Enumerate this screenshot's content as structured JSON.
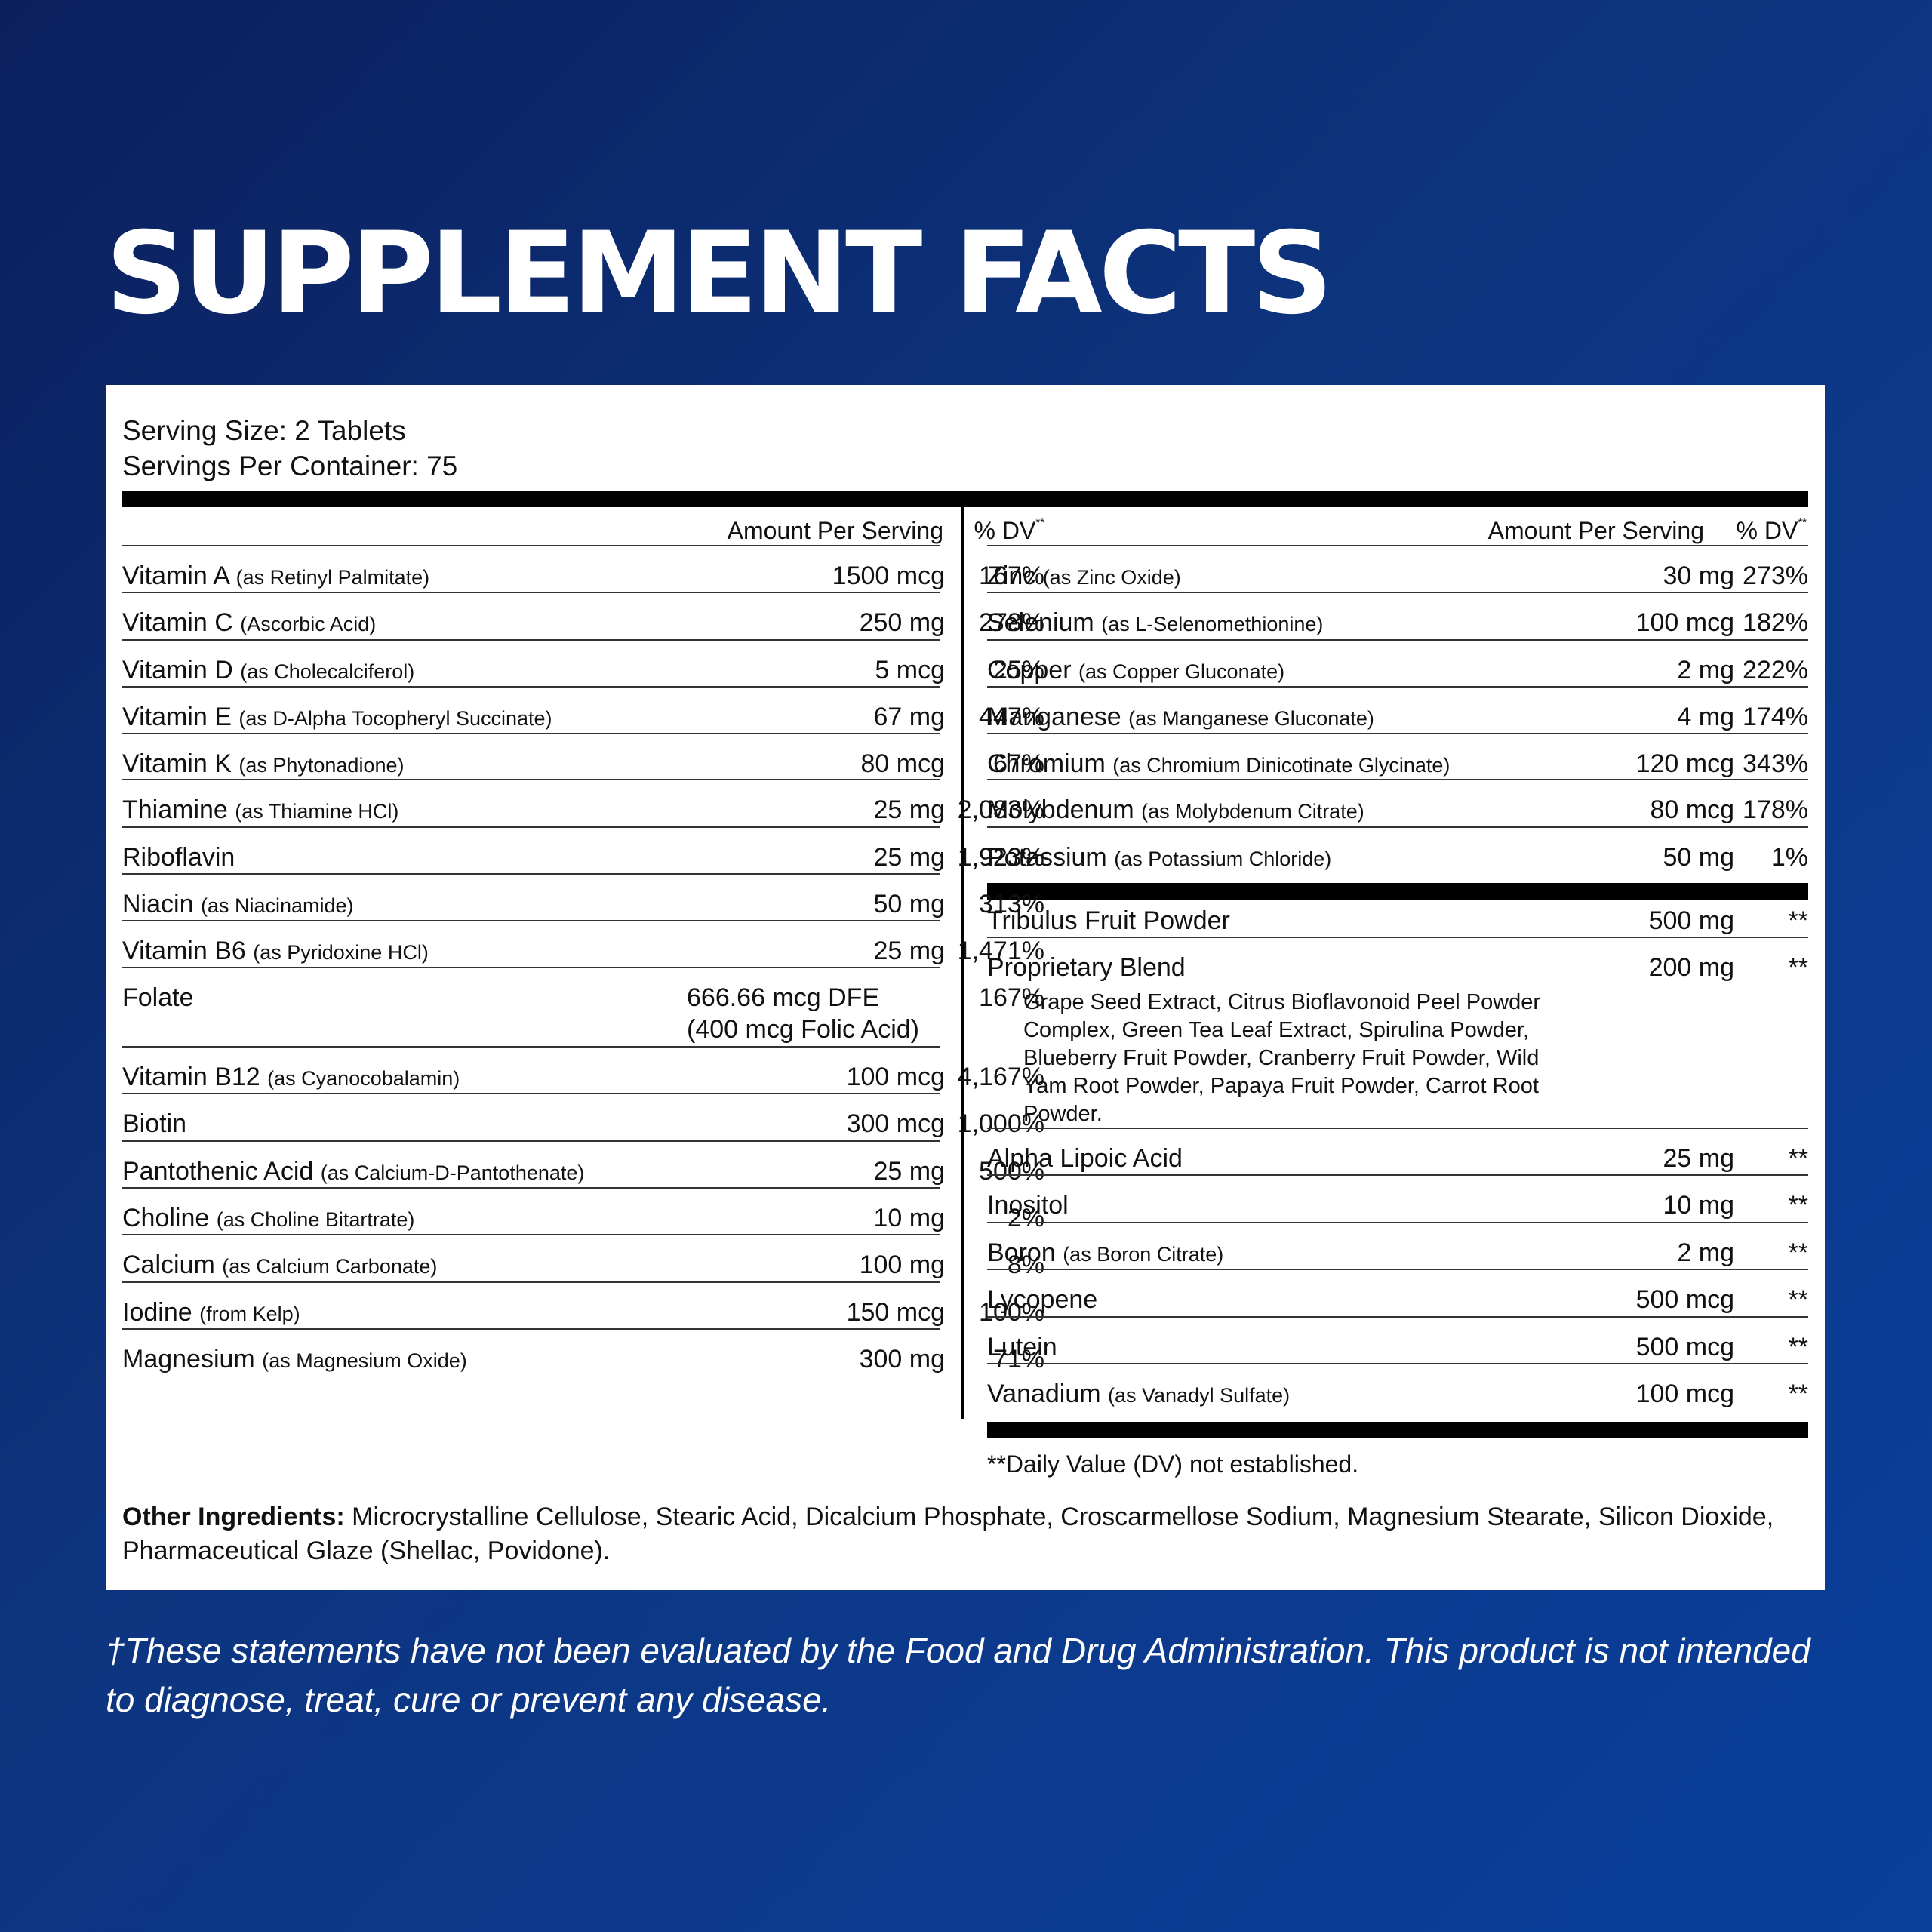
{
  "title": "SUPPLEMENT FACTS",
  "serving_size": "Serving Size: 2 Tablets",
  "servings_per_container": "Servings Per Container: 75",
  "column_header": {
    "amount": "Amount Per Serving",
    "dv": "% DV",
    "dv_mark": "**"
  },
  "left_rows": [
    {
      "name": "Vitamin A",
      "qual": "(as Retinyl Palmitate)",
      "amount": "1500 mcg",
      "dv": "167%"
    },
    {
      "name": "Vitamin C",
      "qual": "(Ascorbic Acid)",
      "amount": "250 mg",
      "dv": "278%"
    },
    {
      "name": "Vitamin D",
      "qual": "(as Cholecalciferol)",
      "amount": "5 mcg",
      "dv": "25%"
    },
    {
      "name": "Vitamin E",
      "qual": "(as D-Alpha Tocopheryl Succinate)",
      "amount": "67 mg",
      "dv": "447%"
    },
    {
      "name": "Vitamin K",
      "qual": "(as Phytonadione)",
      "amount": "80 mcg",
      "dv": "67%"
    },
    {
      "name": "Thiamine",
      "qual": "(as Thiamine HCl)",
      "amount": "25 mg",
      "dv": "2,083%"
    },
    {
      "name": "Riboflavin",
      "qual": "",
      "amount": "25 mg",
      "dv": "1,923%"
    },
    {
      "name": "Niacin",
      "qual": "(as Niacinamide)",
      "amount": "50 mg",
      "dv": "313%"
    },
    {
      "name": "Vitamin B6",
      "qual": "(as Pyridoxine HCl)",
      "amount": "25 mg",
      "dv": "1,471%"
    },
    {
      "name": "Folate",
      "qual": "",
      "amount": "666.66 mcg DFE",
      "amount2": "(400 mcg Folic Acid)",
      "dv": "167%"
    },
    {
      "name": "Vitamin B12",
      "qual": "(as Cyanocobalamin)",
      "amount": "100 mcg",
      "dv": "4,167%"
    },
    {
      "name": "Biotin",
      "qual": "",
      "amount": "300 mcg",
      "dv": "1,000%"
    },
    {
      "name": "Pantothenic Acid",
      "qual": "(as Calcium-D-Pantothenate)",
      "amount": "25 mg",
      "dv": "500%"
    },
    {
      "name": "Choline",
      "qual": "(as Choline Bitartrate)",
      "amount": "10 mg",
      "dv": "2%"
    },
    {
      "name": "Calcium",
      "qual": "(as Calcium Carbonate)",
      "amount": "100 mg",
      "dv": "8%"
    },
    {
      "name": "Iodine",
      "qual": "(from Kelp)",
      "amount": "150 mcg",
      "dv": "100%"
    },
    {
      "name": "Magnesium",
      "qual": "(as Magnesium Oxide)",
      "amount": "300 mg",
      "dv": "71%"
    }
  ],
  "right_rows_top": [
    {
      "name": "Zinc",
      "qual": "(as Zinc Oxide)",
      "amount": "30 mg",
      "dv": "273%"
    },
    {
      "name": "Selenium",
      "qual": "(as L-Selenomethionine)",
      "amount": "100 mcg",
      "dv": "182%"
    },
    {
      "name": "Copper",
      "qual": "(as Copper Gluconate)",
      "amount": "2 mg",
      "dv": "222%"
    },
    {
      "name": "Manganese",
      "qual": "(as Manganese Gluconate)",
      "amount": "4 mg",
      "dv": "174%"
    },
    {
      "name": "Chromium",
      "qual": "(as Chromium Dinicotinate Glycinate)",
      "amount": "120 mcg",
      "dv": "343%"
    },
    {
      "name": "Molybdenum",
      "qual": "(as Molybdenum Citrate)",
      "amount": "80 mcg",
      "dv": "178%"
    },
    {
      "name": "Potassium",
      "qual": "(as Potassium Chloride)",
      "amount": "50 mg",
      "dv": "1%"
    }
  ],
  "right_rows_bottom": [
    {
      "name": "Tribulus Fruit Powder",
      "qual": "",
      "amount": "500 mg",
      "dv": "**"
    },
    {
      "name": "Proprietary Blend",
      "qual": "",
      "amount": "200 mg",
      "dv": "**"
    },
    {
      "name": "Alpha Lipoic Acid",
      "qual": "",
      "amount": "25 mg",
      "dv": "**"
    },
    {
      "name": "Inositol",
      "qual": "",
      "amount": "10 mg",
      "dv": "**"
    },
    {
      "name": "Boron",
      "qual": "(as Boron Citrate)",
      "amount": "2 mg",
      "dv": "**"
    },
    {
      "name": "Lycopene",
      "qual": "",
      "amount": "500 mcg",
      "dv": "**"
    },
    {
      "name": "Lutein",
      "qual": "",
      "amount": "500 mcg",
      "dv": "**"
    },
    {
      "name": "Vanadium",
      "qual": "(as Vanadyl Sulfate)",
      "amount": "100 mcg",
      "dv": "**"
    }
  ],
  "proprietary_blend_ingredients": "Grape Seed Extract, Citrus Bioflavonoid Peel Powder Complex, Green Tea Leaf Extract, Spirulina Powder, Blueberry Fruit Powder, Cranberry Fruit Powder, Wild Yam Root Powder, Papaya Fruit Powder, Carrot Root Powder.",
  "dv_note": "**Daily Value (DV) not established.",
  "other_ingredients_label": "Other Ingredients:",
  "other_ingredients": " Microcrystalline Cellulose, Stearic Acid, Dicalcium Phosphate, Croscarmellose Sodium, Magnesium Stearate, Silicon Dioxide, Pharmaceutical Glaze (Shellac, Povidone).",
  "disclaimer": "†These statements have not been evaluated by the Food and Drug Administration. This product is not intended to diagnose, treat, cure or prevent any disease."
}
